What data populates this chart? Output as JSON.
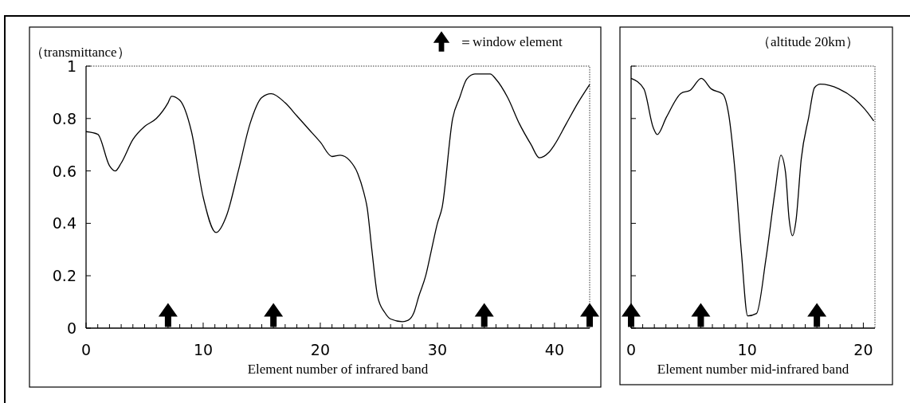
{
  "chart_data": [
    {
      "type": "line",
      "ylabel": "（transmittance）",
      "xlabel": "Element number of infrared band",
      "xlim": [
        0,
        43
      ],
      "ylim": [
        0,
        1
      ],
      "xticks": [
        0,
        {
          "value": 1,
          "label": null
        },
        {
          "value": 2,
          "label": null
        },
        {
          "value": 3,
          "label": null
        },
        {
          "value": 4,
          "label": null
        },
        {
          "value": 5,
          "label": null
        },
        {
          "value": 6,
          "label": null
        },
        {
          "value": 7,
          "label": null
        },
        {
          "value": 8,
          "label": null
        },
        {
          "value": 9,
          "label": null
        },
        10,
        {
          "value": 11,
          "label": null
        },
        {
          "value": 12,
          "label": null
        },
        {
          "value": 13,
          "label": null
        },
        {
          "value": 14,
          "label": null
        },
        {
          "value": 15,
          "label": null
        },
        {
          "value": 16,
          "label": null
        },
        {
          "value": 17,
          "label": null
        },
        {
          "value": 18,
          "label": null
        },
        {
          "value": 19,
          "label": null
        },
        20,
        {
          "value": 21,
          "label": null
        },
        {
          "value": 22,
          "label": null
        },
        {
          "value": 23,
          "label": null
        },
        {
          "value": 24,
          "label": null
        },
        {
          "value": 25,
          "label": null
        },
        {
          "value": 26,
          "label": null
        },
        {
          "value": 27,
          "label": null
        },
        {
          "value": 28,
          "label": null
        },
        {
          "value": 29,
          "label": null
        },
        30,
        {
          "value": 31,
          "label": null
        },
        {
          "value": 32,
          "label": null
        },
        {
          "value": 33,
          "label": null
        },
        {
          "value": 34,
          "label": null
        },
        {
          "value": 35,
          "label": null
        },
        {
          "value": 36,
          "label": null
        },
        {
          "value": 37,
          "label": null
        },
        {
          "value": 38,
          "label": null
        },
        {
          "value": 39,
          "label": null
        },
        40,
        {
          "value": 41,
          "label": null
        },
        {
          "value": 42,
          "label": null
        }
      ],
      "yticks": [
        0,
        0.2,
        0.4,
        0.6,
        0.8,
        1
      ],
      "legend": "top right",
      "series": [
        {
          "type": "line",
          "color": "#000000",
          "x": [
            0,
            1,
            2,
            2.5,
            3,
            4,
            5,
            6,
            7,
            7.3,
            8,
            9,
            10,
            11.1,
            12,
            13,
            14,
            15,
            15.8,
            17,
            18,
            19,
            20,
            21,
            21.7,
            22.5,
            23.2,
            23.7,
            24,
            24.4,
            24.9,
            25.5,
            26,
            27,
            27.5,
            28,
            28.4,
            29,
            29.5,
            30,
            30.4,
            31.3,
            31.9,
            32.5,
            33.2,
            34.5,
            35,
            36,
            37,
            38,
            38.7,
            39.5,
            40,
            41,
            42,
            43
          ],
          "values": [
            0.75,
            0.74,
            0.62,
            0.6,
            0.63,
            0.72,
            0.77,
            0.8,
            0.86,
            0.885,
            0.87,
            0.75,
            0.5,
            0.365,
            0.43,
            0.6,
            0.78,
            0.88,
            0.895,
            0.86,
            0.81,
            0.76,
            0.71,
            0.655,
            0.66,
            0.64,
            0.59,
            0.52,
            0.46,
            0.3,
            0.12,
            0.06,
            0.035,
            0.025,
            0.03,
            0.06,
            0.12,
            0.2,
            0.3,
            0.4,
            0.46,
            0.8,
            0.88,
            0.95,
            0.97,
            0.97,
            0.95,
            0.88,
            0.78,
            0.7,
            0.65,
            0.67,
            0.7,
            0.78,
            0.86,
            0.93
          ]
        },
        {
          "type": "scatter",
          "name": "＝window element",
          "color": "#000000",
          "marker": "triangle",
          "x": [
            7,
            16,
            34,
            43
          ],
          "values": [
            0.05,
            0.05,
            0.05,
            0.05
          ]
        }
      ]
    },
    {
      "type": "line",
      "xlabel": "Element number mid-infrared band",
      "xlim": [
        0,
        21
      ],
      "ylim": [
        0,
        1
      ],
      "tick_labels": "x",
      "annotations": [
        "（altitude 20km）"
      ],
      "xticks": [
        0,
        {
          "value": 1,
          "label": null
        },
        {
          "value": 2,
          "label": null
        },
        {
          "value": 3,
          "label": null
        },
        {
          "value": 4,
          "label": null
        },
        {
          "value": 5,
          "label": null
        },
        {
          "value": 6,
          "label": null
        },
        {
          "value": 7,
          "label": null
        },
        {
          "value": 8,
          "label": null
        },
        {
          "value": 9,
          "label": null
        },
        10,
        {
          "value": 11,
          "label": null
        },
        {
          "value": 12,
          "label": null
        },
        {
          "value": 13,
          "label": null
        },
        {
          "value": 14,
          "label": null
        },
        {
          "value": 15,
          "label": null
        },
        {
          "value": 16,
          "label": null
        },
        {
          "value": 17,
          "label": null
        },
        {
          "value": 18,
          "label": null
        },
        {
          "value": 19,
          "label": null
        },
        20
      ],
      "yticks": [
        0,
        0.2,
        0.4,
        0.6,
        0.8,
        1
      ],
      "series": [
        {
          "type": "line",
          "color": "#000000",
          "x": [
            0,
            1.1,
            1.9,
            2.25,
            3.05,
            4.3,
            5.1,
            6.05,
            6.9,
            7.9,
            8.4,
            8.96,
            9.5,
            10.04,
            10.8,
            11.6,
            12.4,
            12.9,
            13.3,
            13.6,
            13.9,
            14.2,
            14.65,
            15.3,
            15.8,
            16.3,
            17.9,
            19.2,
            20.1,
            20.9
          ],
          "values": [
            0.953,
            0.913,
            0.766,
            0.739,
            0.806,
            0.896,
            0.908,
            0.953,
            0.913,
            0.893,
            0.817,
            0.594,
            0.29,
            0.047,
            0.056,
            0.26,
            0.523,
            0.66,
            0.594,
            0.42,
            0.353,
            0.41,
            0.644,
            0.806,
            0.918,
            0.931,
            0.913,
            0.877,
            0.837,
            0.791
          ]
        },
        {
          "type": "scatter",
          "color": "#000000",
          "marker": "triangle",
          "x": [
            0,
            6,
            16
          ],
          "values": [
            0.05,
            0.05,
            0.05
          ]
        }
      ]
    }
  ]
}
